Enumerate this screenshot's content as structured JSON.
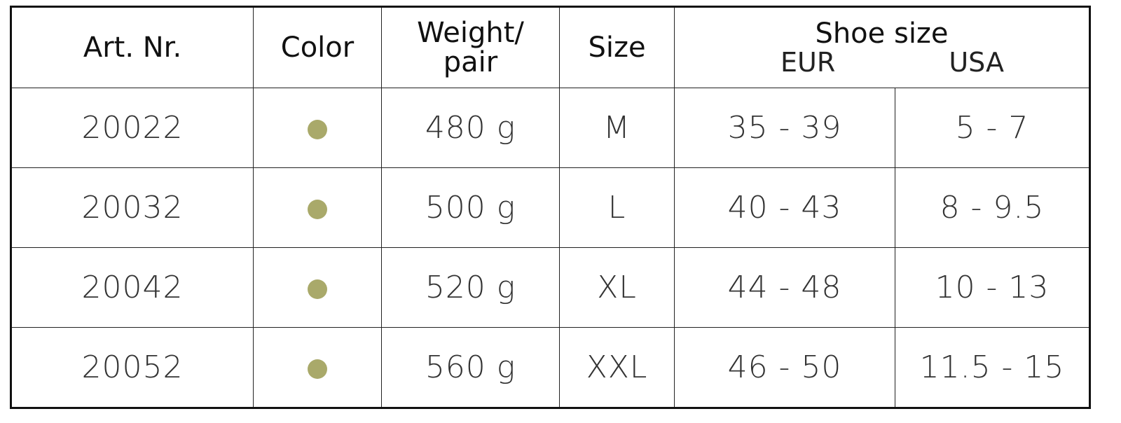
{
  "headers": {
    "art_nr": "Art. Nr.",
    "color": "Color",
    "weight_line1": "Weight/",
    "weight_line2": "pair",
    "size": "Size",
    "shoe_size": "Shoe size",
    "eur": "EUR",
    "usa": "USA"
  },
  "colors": {
    "dot": "#a9a96a"
  },
  "rows": [
    {
      "art_nr": "20022",
      "color": "olive",
      "weight": "480 g",
      "size": "M",
      "eur": "35 - 39",
      "usa": "5 - 7"
    },
    {
      "art_nr": "20032",
      "color": "olive",
      "weight": "500 g",
      "size": "L",
      "eur": "40 - 43",
      "usa": "8 - 9.5"
    },
    {
      "art_nr": "20042",
      "color": "olive",
      "weight": "520 g",
      "size": "XL",
      "eur": "44 - 48",
      "usa": "10 - 13"
    },
    {
      "art_nr": "20052",
      "color": "olive",
      "weight": "560 g",
      "size": "XXL",
      "eur": "46 - 50",
      "usa": "11.5 - 15"
    }
  ]
}
